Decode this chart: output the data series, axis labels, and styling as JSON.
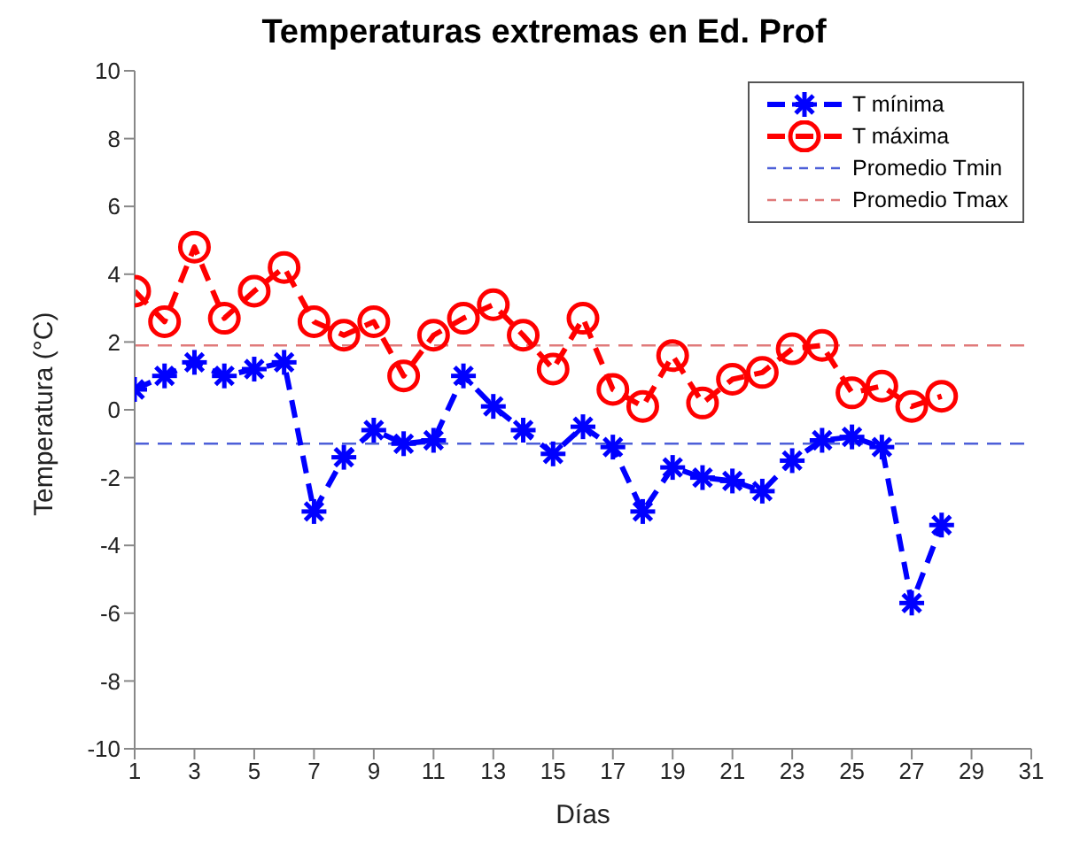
{
  "chart_data": {
    "type": "line",
    "title": "Temperaturas extremas en Ed. Prof",
    "xlabel": "Días",
    "ylabel": "Temperatura (°C)",
    "x": [
      1,
      2,
      3,
      4,
      5,
      6,
      7,
      8,
      9,
      10,
      11,
      12,
      13,
      14,
      15,
      16,
      17,
      18,
      19,
      20,
      21,
      22,
      23,
      24,
      25,
      26,
      27,
      28
    ],
    "series": [
      {
        "name": "T mínima",
        "color": "#0000ff",
        "marker": "cross",
        "line_style": "dashed",
        "values": [
          0.6,
          1.0,
          1.4,
          1.0,
          1.2,
          1.4,
          -3.0,
          -1.4,
          -0.6,
          -1.0,
          -0.9,
          1.0,
          0.1,
          -0.6,
          -1.3,
          -0.5,
          -1.1,
          -3.0,
          -1.7,
          -2.0,
          -2.1,
          -2.4,
          -1.5,
          -0.9,
          -0.8,
          -1.1,
          -5.7,
          -3.4
        ]
      },
      {
        "name": "T máxima",
        "color": "#ff0000",
        "marker": "circle",
        "line_style": "dashed",
        "values": [
          3.5,
          2.6,
          4.8,
          2.7,
          3.5,
          4.2,
          2.6,
          2.2,
          2.6,
          1.0,
          2.2,
          2.7,
          3.1,
          2.2,
          1.2,
          2.7,
          0.6,
          0.1,
          1.6,
          0.2,
          0.9,
          1.1,
          1.8,
          1.9,
          0.5,
          0.7,
          0.1,
          0.4
        ]
      }
    ],
    "ref_lines": [
      {
        "axis": "y",
        "value": -1.0,
        "label": "Promedio Tmin",
        "color": "#4d5fd8",
        "line_style": "dashed"
      },
      {
        "axis": "y",
        "value": 1.9,
        "label": "Promedio Tmax",
        "color": "#e07a7a",
        "line_style": "dashed"
      }
    ],
    "xlim": [
      1,
      31
    ],
    "xticks": [
      1,
      3,
      5,
      7,
      9,
      11,
      13,
      15,
      17,
      19,
      21,
      23,
      25,
      27,
      29,
      31
    ],
    "ylim": [
      -10,
      10
    ],
    "yticks": [
      -10,
      -8,
      -6,
      -4,
      -2,
      0,
      2,
      4,
      6,
      8,
      10
    ],
    "grid": false,
    "legend": "top right"
  }
}
